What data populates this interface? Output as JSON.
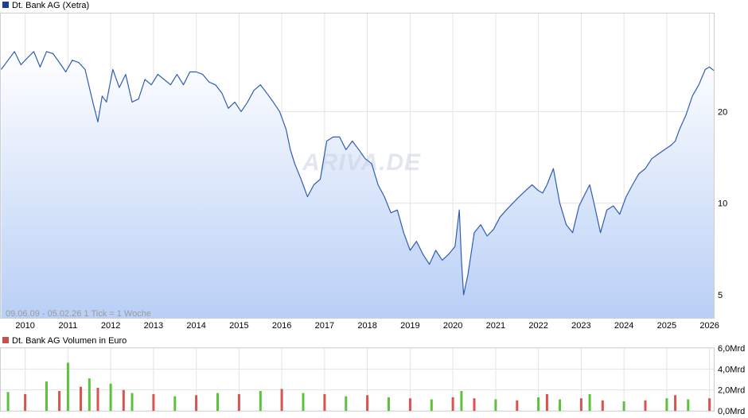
{
  "chart_data": [
    {
      "type": "line",
      "legend": {
        "label": "Dt. Bank AG (Xetra)",
        "color": "#1c3f94",
        "placement": "top-left"
      },
      "series": [
        {
          "name": "Dt. Bank AG (Xetra)",
          "color": "#2f5cb8",
          "x": [
            2009.44,
            2009.6,
            2009.75,
            2009.9,
            2010.05,
            2010.2,
            2010.35,
            2010.5,
            2010.65,
            2010.8,
            2010.95,
            2011.1,
            2011.25,
            2011.4,
            2011.5,
            2011.6,
            2011.7,
            2011.8,
            2011.9,
            2012.05,
            2012.2,
            2012.35,
            2012.5,
            2012.65,
            2012.8,
            2012.95,
            2013.1,
            2013.25,
            2013.4,
            2013.55,
            2013.7,
            2013.85,
            2014.0,
            2014.15,
            2014.3,
            2014.45,
            2014.6,
            2014.75,
            2014.9,
            2015.05,
            2015.2,
            2015.35,
            2015.5,
            2015.65,
            2015.8,
            2015.95,
            2016.1,
            2016.2,
            2016.3,
            2016.45,
            2016.6,
            2016.75,
            2016.9,
            2017.05,
            2017.2,
            2017.35,
            2017.5,
            2017.65,
            2017.8,
            2017.95,
            2018.1,
            2018.25,
            2018.4,
            2018.55,
            2018.7,
            2018.85,
            2019.0,
            2019.15,
            2019.3,
            2019.45,
            2019.6,
            2019.75,
            2019.9,
            2020.05,
            2020.15,
            2020.2,
            2020.25,
            2020.35,
            2020.5,
            2020.65,
            2020.8,
            2020.95,
            2021.1,
            2021.25,
            2021.4,
            2021.55,
            2021.7,
            2021.85,
            2022.0,
            2022.1,
            2022.2,
            2022.35,
            2022.5,
            2022.65,
            2022.8,
            2022.95,
            2023.1,
            2023.2,
            2023.3,
            2023.45,
            2023.6,
            2023.75,
            2023.9,
            2024.05,
            2024.2,
            2024.35,
            2024.5,
            2024.65,
            2024.8,
            2024.95,
            2025.1,
            2025.2,
            2025.3,
            2025.45,
            2025.6,
            2025.75,
            2025.9,
            2026.0,
            2026.1
          ],
          "values": [
            27.5,
            29.5,
            31.5,
            28.5,
            30.0,
            31.5,
            28.0,
            31.5,
            31.0,
            29.0,
            27.0,
            29.5,
            29.0,
            27.5,
            24.0,
            21.0,
            18.5,
            22.5,
            21.5,
            27.5,
            24.0,
            26.5,
            21.5,
            22.0,
            25.5,
            24.5,
            26.5,
            25.5,
            24.5,
            26.5,
            24.5,
            27.0,
            27.0,
            26.5,
            25.0,
            24.5,
            23.0,
            20.5,
            21.5,
            20.0,
            21.5,
            23.5,
            24.5,
            23.0,
            21.5,
            20.0,
            17.5,
            15.0,
            13.5,
            12.0,
            10.5,
            11.5,
            12.0,
            16.0,
            16.5,
            16.5,
            15.0,
            16.0,
            15.0,
            14.0,
            13.5,
            11.5,
            10.5,
            9.3,
            9.5,
            8.0,
            7.0,
            7.5,
            6.8,
            6.3,
            7.0,
            6.5,
            6.8,
            7.2,
            9.5,
            6.5,
            5.0,
            5.8,
            8.0,
            8.5,
            7.8,
            8.2,
            9.0,
            9.5,
            10.0,
            10.5,
            11.0,
            11.5,
            11.0,
            10.8,
            11.5,
            13.0,
            10.0,
            8.5,
            8.0,
            9.8,
            10.8,
            11.5,
            10.0,
            8.0,
            9.5,
            9.8,
            9.2,
            10.5,
            11.5,
            12.5,
            13.0,
            14.0,
            14.5,
            15.0,
            15.5,
            16.0,
            17.5,
            19.5,
            22.5,
            24.5,
            27.5,
            28.0,
            27.3
          ]
        }
      ],
      "xlabel": "",
      "ylabel": "",
      "x_ticks": [
        "2010",
        "2011",
        "2012",
        "2013",
        "2014",
        "2015",
        "2016",
        "2017",
        "2018",
        "2019",
        "2020",
        "2021",
        "2022",
        "2023",
        "2024",
        "2025",
        "2026"
      ],
      "y_ticks": [
        "5",
        "10",
        "20"
      ],
      "y_scale": "log",
      "ylim": [
        4.2,
        42
      ],
      "xlim": [
        2009.43,
        2026.1
      ],
      "grid": true,
      "info_label": "09.06.09 - 05.02.26   1 Tick = 1 Woche",
      "watermark": "ARIVA.DE"
    },
    {
      "type": "bar",
      "legend": {
        "label": "Dt. Bank AG Volumen in Euro",
        "color": "#c9504a",
        "placement": "top-left"
      },
      "y_ticks": [
        "0,0Mrd",
        "2,0Mrd",
        "4,0Mrd",
        "6,0Mrd"
      ],
      "ylim": [
        0,
        6.0
      ],
      "unit": "Mrd",
      "grid": true,
      "bar_colors": {
        "up": "#5cc23d",
        "down": "#d9534f"
      },
      "series": [
        {
          "name": "Dt. Bank AG Volumen in Euro",
          "x": [
            2009.6,
            2010.0,
            2010.5,
            2010.8,
            2011.0,
            2011.3,
            2011.5,
            2011.7,
            2012.0,
            2012.3,
            2012.5,
            2013.0,
            2013.5,
            2014.0,
            2014.5,
            2015.0,
            2015.5,
            2016.0,
            2016.5,
            2017.0,
            2017.5,
            2018.0,
            2018.5,
            2019.0,
            2019.5,
            2020.0,
            2020.2,
            2020.5,
            2021.0,
            2021.5,
            2022.0,
            2022.2,
            2022.5,
            2023.0,
            2023.2,
            2023.5,
            2024.0,
            2024.5,
            2025.0,
            2025.2,
            2025.5,
            2026.0
          ],
          "values": [
            1.8,
            1.6,
            2.8,
            1.9,
            4.6,
            2.3,
            3.1,
            2.2,
            2.6,
            2.0,
            1.7,
            1.6,
            1.4,
            1.5,
            1.7,
            1.6,
            1.9,
            2.1,
            1.7,
            1.6,
            1.4,
            1.5,
            1.3,
            1.2,
            1.1,
            1.3,
            1.9,
            1.2,
            1.1,
            1.0,
            1.3,
            1.6,
            1.1,
            1.2,
            1.6,
            1.0,
            0.9,
            1.0,
            1.2,
            1.5,
            1.1,
            1.2
          ]
        }
      ]
    }
  ]
}
